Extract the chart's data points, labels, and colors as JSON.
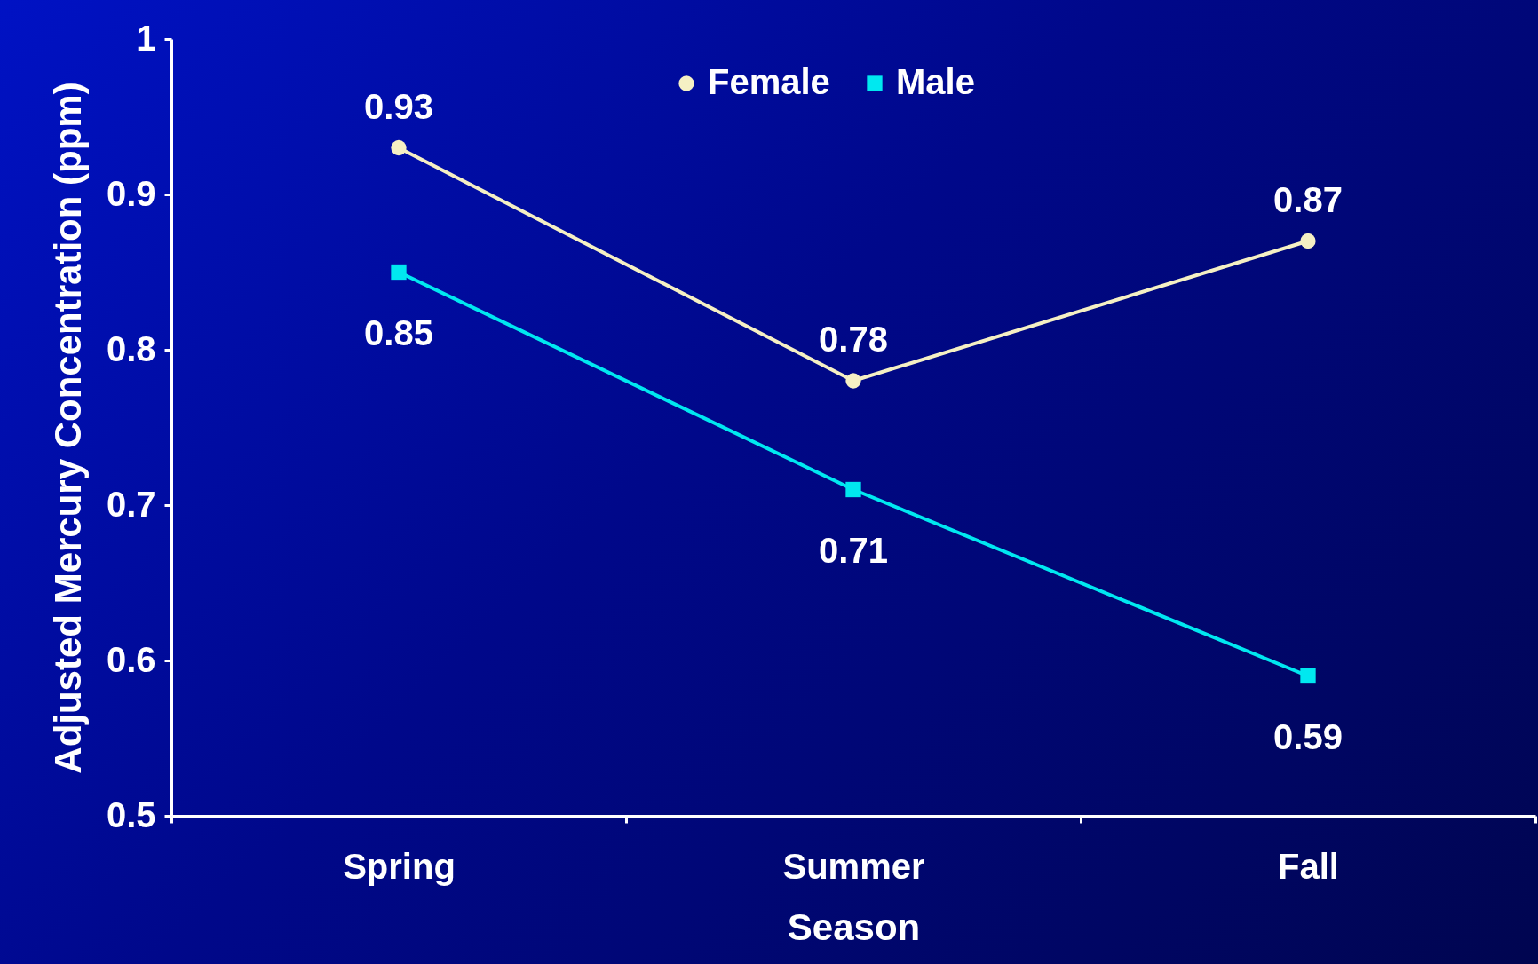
{
  "chart_data": {
    "type": "line",
    "xlabel": "Season",
    "ylabel": "Adjusted Mercury Concentration (ppm)",
    "categories": [
      "Spring",
      "Summer",
      "Fall"
    ],
    "series": [
      {
        "name": "Female",
        "color": "#f5f0c4",
        "marker": "circle",
        "values": [
          0.93,
          0.78,
          0.87
        ]
      },
      {
        "name": "Male",
        "color": "#00e8f0",
        "marker": "square",
        "values": [
          0.85,
          0.71,
          0.59
        ]
      }
    ],
    "ylim": [
      0.5,
      1
    ],
    "yticks": [
      0.5,
      0.6,
      0.7,
      0.8,
      0.9,
      1
    ],
    "data_labels": true,
    "legend": "top",
    "grid": false,
    "line_style": "solid"
  }
}
